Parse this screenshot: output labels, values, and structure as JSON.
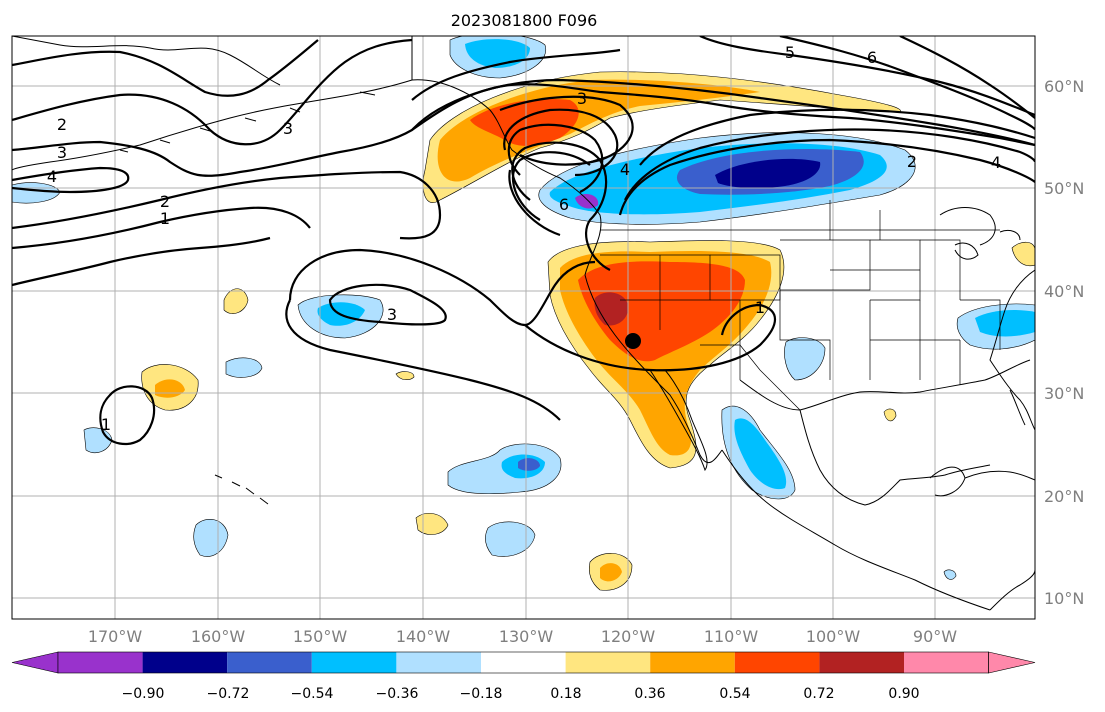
{
  "title": "2023081800 F096",
  "lon_labels": [
    "170°W",
    "160°W",
    "150°W",
    "140°W",
    "130°W",
    "120°W",
    "110°W",
    "100°W",
    "90°W"
  ],
  "lat_labels": [
    "60°N",
    "50°N",
    "40°N",
    "30°N",
    "20°N",
    "10°N"
  ],
  "colorbar": {
    "tick_labels": [
      "−0.90",
      "−0.72",
      "−0.54",
      "−0.36",
      "−0.18",
      "0.18",
      "0.36",
      "0.54",
      "0.72",
      "0.90"
    ],
    "colors": [
      "#9932cc",
      "#00008b",
      "#3a5fcd",
      "#00bfff",
      "#b0e0ff",
      "#ffffff",
      "#ffe680",
      "#ffa500",
      "#ff4500",
      "#b22222",
      "#ff88aa"
    ]
  },
  "contour_labels": [
    "2",
    "3",
    "4",
    "2",
    "1",
    "3",
    "3",
    "4",
    "6",
    "5",
    "6",
    "4",
    "2",
    "3",
    "1",
    "1"
  ],
  "map_extent": {
    "lon": [
      -180,
      -80
    ],
    "lat": [
      7,
      65
    ]
  },
  "colors": {
    "grid": "#b0b0b0",
    "contour": "#000000",
    "coast": "#000000"
  }
}
